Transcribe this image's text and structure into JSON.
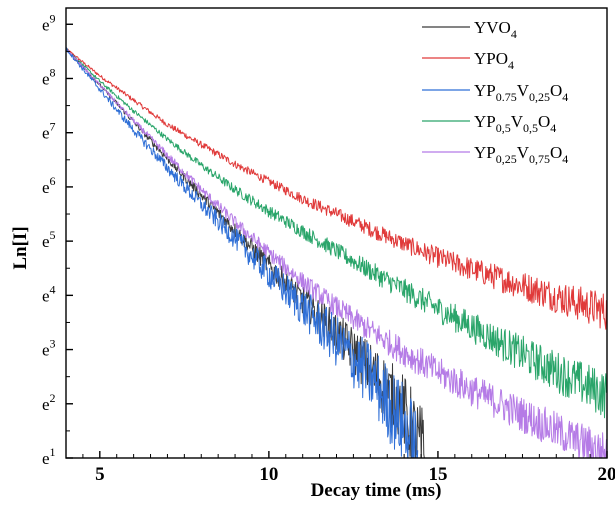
{
  "chart_data": {
    "type": "line",
    "title": "",
    "xlabel": "Decay time (ms)",
    "ylabel": "Ln[I]",
    "xlim": [
      4,
      20
    ],
    "ylim": [
      1,
      9.3
    ],
    "y_scale": "natural log (ticks shown as powers of e)",
    "x_ticks": [
      5,
      10,
      15,
      20
    ],
    "x_tick_labels": [
      "5",
      "10",
      "15",
      "20"
    ],
    "y_ticks": [
      1,
      2,
      3,
      4,
      5,
      6,
      7,
      8,
      9
    ],
    "y_tick_base": "e",
    "y_tick_exponents": [
      "1",
      "2",
      "3",
      "4",
      "5",
      "6",
      "7",
      "8",
      "9"
    ],
    "legend_position": "top-right",
    "grid": false,
    "series": [
      {
        "name_parts": [
          [
            "YVO",
            false
          ],
          [
            "4",
            true
          ]
        ],
        "color": "#3a3a3a",
        "x": [
          4.0,
          5.0,
          6.0,
          7.0,
          8.0,
          9.0,
          10.0,
          11.0,
          12.0,
          13.0,
          14.0,
          14.6
        ],
        "y": [
          8.55,
          7.88,
          7.2,
          6.52,
          5.85,
          5.2,
          4.55,
          3.92,
          3.3,
          2.65,
          1.85,
          1.0
        ],
        "noise": [
          0.02,
          0.03,
          0.05,
          0.07,
          0.1,
          0.14,
          0.2,
          0.28,
          0.38,
          0.5,
          0.7,
          0.9
        ]
      },
      {
        "name_parts": [
          [
            "YPO",
            false
          ],
          [
            "4",
            true
          ]
        ],
        "color": "#e03a3a",
        "x": [
          4.0,
          5.0,
          6.0,
          7.0,
          8.0,
          9.0,
          10.0,
          11.0,
          12.0,
          13.0,
          14.0,
          15.0,
          16.0,
          17.0,
          18.0,
          19.0,
          20.0
        ],
        "y": [
          8.55,
          8.05,
          7.6,
          7.15,
          6.78,
          6.42,
          6.1,
          5.78,
          5.5,
          5.22,
          4.95,
          4.7,
          4.48,
          4.28,
          4.08,
          3.88,
          3.7
        ],
        "noise": [
          0.02,
          0.03,
          0.04,
          0.05,
          0.06,
          0.07,
          0.08,
          0.1,
          0.12,
          0.14,
          0.16,
          0.19,
          0.22,
          0.25,
          0.28,
          0.32,
          0.36
        ]
      },
      {
        "name_parts": [
          [
            "YP",
            false
          ],
          [
            "0.75",
            true
          ],
          [
            "V",
            false
          ],
          [
            "0,25",
            true
          ],
          [
            "O",
            false
          ],
          [
            "4",
            true
          ]
        ],
        "color": "#2f6fd6",
        "x": [
          4.0,
          5.0,
          6.0,
          7.0,
          8.0,
          9.0,
          10.0,
          11.0,
          12.0,
          13.0,
          14.0,
          14.4
        ],
        "y": [
          8.55,
          7.8,
          7.05,
          6.35,
          5.68,
          5.05,
          4.4,
          3.78,
          3.15,
          2.5,
          1.6,
          1.0
        ],
        "noise": [
          0.03,
          0.05,
          0.08,
          0.11,
          0.15,
          0.2,
          0.27,
          0.36,
          0.48,
          0.62,
          0.8,
          0.95
        ]
      },
      {
        "name_parts": [
          [
            "YP",
            false
          ],
          [
            "0,5",
            true
          ],
          [
            "V",
            false
          ],
          [
            "0,5",
            true
          ],
          [
            "O",
            false
          ],
          [
            "4",
            true
          ]
        ],
        "color": "#2aa56a",
        "x": [
          4.0,
          5.0,
          6.0,
          7.0,
          8.0,
          9.0,
          10.0,
          11.0,
          12.0,
          13.0,
          14.0,
          15.0,
          16.0,
          17.0,
          18.0,
          19.0,
          20.0
        ],
        "y": [
          8.55,
          7.95,
          7.4,
          6.88,
          6.4,
          5.95,
          5.55,
          5.18,
          4.82,
          4.45,
          4.1,
          3.75,
          3.42,
          3.08,
          2.75,
          2.45,
          2.15
        ],
        "noise": [
          0.02,
          0.03,
          0.04,
          0.05,
          0.07,
          0.09,
          0.11,
          0.13,
          0.15,
          0.18,
          0.21,
          0.24,
          0.28,
          0.32,
          0.36,
          0.4,
          0.45
        ]
      },
      {
        "name_parts": [
          [
            "YP",
            false
          ],
          [
            "0,25",
            true
          ],
          [
            "V",
            false
          ],
          [
            "0,75",
            true
          ],
          [
            "O",
            false
          ],
          [
            "4",
            true
          ]
        ],
        "color": "#b57be6",
        "x": [
          4.0,
          5.0,
          6.0,
          7.0,
          8.0,
          9.0,
          10.0,
          11.0,
          12.0,
          13.0,
          14.0,
          15.0,
          16.0,
          17.0,
          18.0,
          19.0,
          20.0
        ],
        "y": [
          8.55,
          7.88,
          7.22,
          6.58,
          5.95,
          5.35,
          4.78,
          4.25,
          3.78,
          3.35,
          2.95,
          2.58,
          2.25,
          1.95,
          1.65,
          1.35,
          1.1
        ],
        "noise": [
          0.02,
          0.03,
          0.05,
          0.07,
          0.09,
          0.11,
          0.14,
          0.17,
          0.2,
          0.23,
          0.26,
          0.28,
          0.3,
          0.32,
          0.34,
          0.36,
          0.38
        ]
      }
    ]
  }
}
